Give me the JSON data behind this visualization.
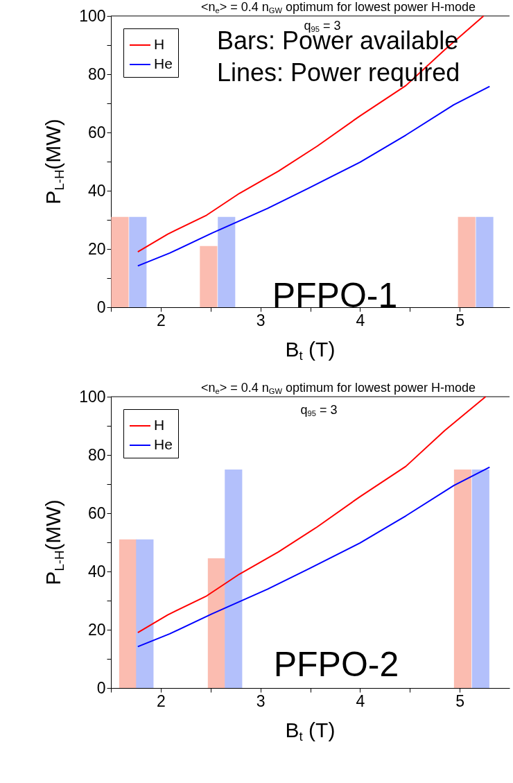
{
  "chart_data": [
    {
      "type": "bar",
      "title": "<n$_{e}$> = 0.4 n$_{GW}$ optimum for lowest power H-mode",
      "xlabel": "B$_{t}$ (T)",
      "ylabel": "P$_{L-H}$(MW)",
      "annotations": [
        "q$_{95}$ = 3",
        "Bars: Power available",
        "Lines: Power required",
        "PFPO-1"
      ],
      "xlim": [
        1.5,
        5.5
      ],
      "ylim": [
        0,
        100
      ],
      "xticks": [
        {
          "value": 1.5,
          "label": null
        },
        2,
        {
          "value": 2.5,
          "label": null
        },
        3,
        {
          "value": 3.5,
          "label": null
        },
        4,
        {
          "value": 4.5,
          "label": null
        },
        5
      ],
      "yticks": [
        0,
        {
          "value": 10,
          "label": null
        },
        20,
        {
          "value": 30,
          "label": null
        },
        40,
        {
          "value": 50,
          "label": null
        },
        60,
        {
          "value": 70,
          "label": null
        },
        80,
        {
          "value": 90,
          "label": null
        },
        100
      ],
      "legend": "top left",
      "series": [
        {
          "color": "#fbbcb0",
          "x": [
            1.59,
            2.48,
            5.07
          ],
          "values": [
            31,
            21,
            31
          ]
        },
        {
          "color": "#b3c0fb",
          "x": [
            1.77,
            2.66,
            5.25
          ],
          "values": [
            31,
            31,
            31
          ]
        },
        {
          "type": "line",
          "name": "H",
          "color": "#ff0000",
          "x": [
            1.77,
            2.07,
            2.46,
            2.79,
            3.18,
            3.57,
            4.0,
            4.46,
            4.85,
            5.24
          ],
          "values": [
            19.0,
            25.1,
            31.6,
            39.1,
            46.7,
            55.3,
            65.7,
            76.1,
            88.4,
            100
          ]
        },
        {
          "type": "line",
          "name": "He",
          "color": "#0000ff",
          "x": [
            1.77,
            2.09,
            2.51,
            3.07,
            3.49,
            4.0,
            4.46,
            4.94,
            5.3
          ],
          "values": [
            14.2,
            18.6,
            25.4,
            33.9,
            41.0,
            49.8,
            59.1,
            69.5,
            75.8
          ]
        }
      ]
    },
    {
      "type": "bar",
      "title": "<n$_{e}$> = 0.4 n$_{GW}$ optimum for lowest power H-mode",
      "xlabel": "B$_{t}$ (T)",
      "ylabel": "P$_{L-H}$(MW)",
      "annotations": [
        "q$_{95}$ = 3",
        "PFPO-2"
      ],
      "xlim": [
        1.5,
        5.5
      ],
      "ylim": [
        0,
        100
      ],
      "xticks": [
        {
          "value": 1.5,
          "label": null
        },
        2,
        {
          "value": 2.5,
          "label": null
        },
        3,
        {
          "value": 3.5,
          "label": null
        },
        4,
        {
          "value": 4.5,
          "label": null
        },
        5
      ],
      "yticks": [
        0,
        {
          "value": 10,
          "label": null
        },
        20,
        {
          "value": 30,
          "label": null
        },
        40,
        {
          "value": 50,
          "label": null
        },
        60,
        {
          "value": 70,
          "label": null
        },
        80,
        {
          "value": 90,
          "label": null
        },
        100
      ],
      "legend": "top left",
      "series": [
        {
          "color": "#fbbcb0",
          "x": [
            1.67,
            2.56,
            5.03
          ],
          "values": [
            51,
            44.5,
            75
          ]
        },
        {
          "color": "#b3c0fb",
          "x": [
            1.84,
            2.73,
            5.21
          ],
          "values": [
            51,
            75,
            75
          ]
        },
        {
          "type": "line",
          "name": "H",
          "color": "#ff0000",
          "x": [
            1.77,
            2.07,
            2.46,
            2.79,
            3.18,
            3.57,
            4.0,
            4.46,
            4.85,
            5.26
          ],
          "values": [
            19.0,
            25.1,
            31.6,
            39.1,
            46.7,
            55.3,
            65.7,
            76.1,
            88.4,
            100
          ]
        },
        {
          "type": "line",
          "name": "He",
          "color": "#0000ff",
          "x": [
            1.77,
            2.09,
            2.51,
            3.07,
            3.49,
            4.0,
            4.46,
            4.94,
            5.3
          ],
          "values": [
            14.2,
            18.6,
            25.4,
            33.9,
            41.0,
            49.8,
            59.1,
            69.5,
            75.8
          ]
        }
      ]
    }
  ]
}
